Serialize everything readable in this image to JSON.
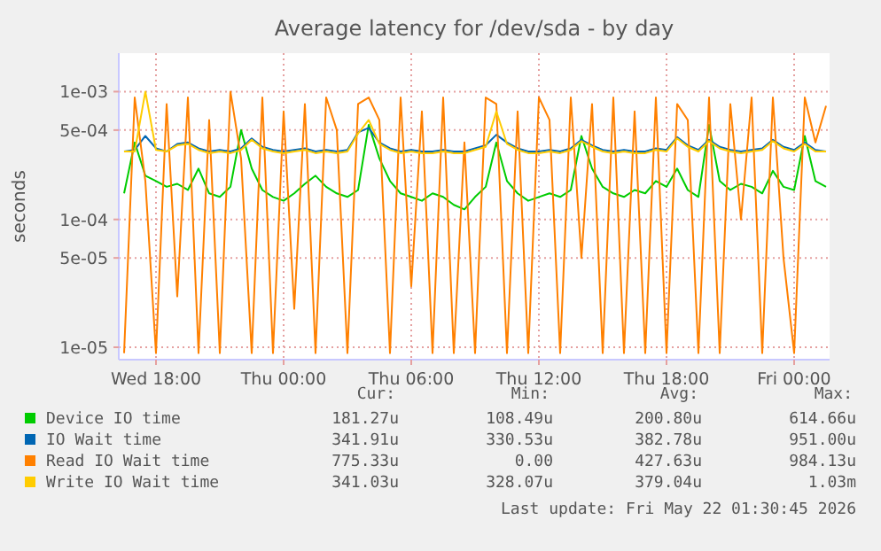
{
  "chart_data": {
    "type": "line",
    "title": "Average latency for /dev/sda - by day",
    "ylabel": "seconds",
    "log": "y",
    "grid": true,
    "legend": "bottom",
    "marker": "none",
    "line_style": "solid",
    "x": [
      "2026-05-20T16:30",
      "2026-05-20T17:00",
      "2026-05-20T17:30",
      "2026-05-20T18:00",
      "2026-05-20T18:30",
      "2026-05-20T19:00",
      "2026-05-20T19:30",
      "2026-05-20T20:00",
      "2026-05-20T20:30",
      "2026-05-20T21:00",
      "2026-05-20T21:30",
      "2026-05-20T22:00",
      "2026-05-20T22:30",
      "2026-05-20T23:00",
      "2026-05-20T23:30",
      "2026-05-21T00:00",
      "2026-05-21T00:30",
      "2026-05-21T01:00",
      "2026-05-21T01:30",
      "2026-05-21T02:00",
      "2026-05-21T02:30",
      "2026-05-21T03:00",
      "2026-05-21T03:30",
      "2026-05-21T04:00",
      "2026-05-21T04:30",
      "2026-05-21T05:00",
      "2026-05-21T05:30",
      "2026-05-21T06:00",
      "2026-05-21T06:30",
      "2026-05-21T07:00",
      "2026-05-21T07:30",
      "2026-05-21T08:00",
      "2026-05-21T08:30",
      "2026-05-21T09:00",
      "2026-05-21T09:30",
      "2026-05-21T10:00",
      "2026-05-21T10:30",
      "2026-05-21T11:00",
      "2026-05-21T11:30",
      "2026-05-21T12:00",
      "2026-05-21T12:30",
      "2026-05-21T13:00",
      "2026-05-21T13:30",
      "2026-05-21T14:00",
      "2026-05-21T14:30",
      "2026-05-21T15:00",
      "2026-05-21T15:30",
      "2026-05-21T16:00",
      "2026-05-21T16:30",
      "2026-05-21T17:00",
      "2026-05-21T17:30",
      "2026-05-21T18:00",
      "2026-05-21T18:30",
      "2026-05-21T19:00",
      "2026-05-21T19:30",
      "2026-05-21T20:00",
      "2026-05-21T20:30",
      "2026-05-21T21:00",
      "2026-05-21T21:30",
      "2026-05-21T22:00",
      "2026-05-21T22:30",
      "2026-05-21T23:00",
      "2026-05-21T23:30",
      "2026-05-22T00:00",
      "2026-05-22T00:30",
      "2026-05-22T01:00",
      "2026-05-22T01:30"
    ],
    "xlim": [
      "2026-05-20T16:15",
      "2026-05-22T01:40"
    ],
    "xticks": [
      {
        "value": "2026-05-20T18:00",
        "label": "Wed 18:00"
      },
      {
        "value": "2026-05-21T00:00",
        "label": "Thu 00:00"
      },
      {
        "value": "2026-05-21T06:00",
        "label": "Thu 06:00"
      },
      {
        "value": "2026-05-21T12:00",
        "label": "Thu 12:00"
      },
      {
        "value": "2026-05-21T18:00",
        "label": "Thu 18:00"
      },
      {
        "value": "2026-05-22T00:00",
        "label": "Fri 00:00"
      }
    ],
    "ylim": [
      8e-06,
      0.002
    ],
    "yticks": [
      {
        "value": 1e-05,
        "label": "1e-05"
      },
      {
        "value": 5e-05,
        "label": "5e-05"
      },
      {
        "value": 0.0001,
        "label": "1e-04"
      },
      {
        "value": 0.0005,
        "label": "5e-04"
      },
      {
        "value": 0.001,
        "label": "1e-03"
      }
    ],
    "series": [
      {
        "name": "Device IO time",
        "color": "#00cc00",
        "values": [
          0.00016,
          0.0004,
          0.00022,
          0.0002,
          0.00018,
          0.00019,
          0.00017,
          0.00025,
          0.00016,
          0.00015,
          0.00018,
          0.0005,
          0.00025,
          0.00017,
          0.00015,
          0.00014,
          0.00016,
          0.00019,
          0.00022,
          0.00018,
          0.00016,
          0.00015,
          0.00017,
          0.00055,
          0.0003,
          0.0002,
          0.00016,
          0.00015,
          0.00014,
          0.00016,
          0.00015,
          0.00013,
          0.00012,
          0.00015,
          0.00018,
          0.0004,
          0.0002,
          0.00016,
          0.00014,
          0.00015,
          0.00016,
          0.00015,
          0.00017,
          0.00045,
          0.00025,
          0.00018,
          0.00016,
          0.00015,
          0.00017,
          0.00016,
          0.0002,
          0.00018,
          0.00025,
          0.00017,
          0.00015,
          0.00055,
          0.0002,
          0.00017,
          0.00019,
          0.00018,
          0.00016,
          0.00024,
          0.00018,
          0.00017,
          0.00045,
          0.0002,
          0.00018
        ]
      },
      {
        "name": "IO Wait time",
        "color": "#0066b3",
        "values": [
          0.00034,
          0.00035,
          0.00045,
          0.00036,
          0.00034,
          0.00039,
          0.0004,
          0.00036,
          0.00034,
          0.00035,
          0.00034,
          0.00036,
          0.00043,
          0.00037,
          0.00035,
          0.00034,
          0.00035,
          0.00036,
          0.00034,
          0.00035,
          0.00034,
          0.00035,
          0.00048,
          0.00052,
          0.0004,
          0.00036,
          0.00034,
          0.00035,
          0.00034,
          0.00034,
          0.00035,
          0.00034,
          0.00034,
          0.00036,
          0.00038,
          0.00046,
          0.0004,
          0.00036,
          0.00034,
          0.00034,
          0.00035,
          0.00034,
          0.00036,
          0.00042,
          0.00038,
          0.00035,
          0.00034,
          0.00035,
          0.00034,
          0.00034,
          0.00036,
          0.00035,
          0.00044,
          0.00038,
          0.00035,
          0.00042,
          0.00037,
          0.00035,
          0.00034,
          0.00035,
          0.00036,
          0.00042,
          0.00037,
          0.00035,
          0.0004,
          0.00035,
          0.00034
        ]
      },
      {
        "name": "Read IO Wait time",
        "color": "#ff8000",
        "values": [
          9e-06,
          0.0009,
          0.0002,
          9e-06,
          0.0008,
          2.5e-05,
          0.0009,
          9e-06,
          0.0006,
          9e-06,
          0.001,
          0.0003,
          9e-06,
          0.0009,
          9e-06,
          0.0007,
          2e-05,
          0.0008,
          9e-06,
          0.0009,
          0.0005,
          9e-06,
          0.0008,
          0.0009,
          0.0006,
          9e-06,
          0.0009,
          3e-05,
          0.0007,
          9e-06,
          0.0009,
          9e-06,
          0.0004,
          9e-06,
          0.0009,
          0.0008,
          9e-06,
          0.0007,
          9e-06,
          0.0009,
          0.0006,
          9e-06,
          0.0009,
          5e-05,
          0.0008,
          9e-06,
          0.0009,
          9e-06,
          0.0007,
          9e-06,
          0.0009,
          9e-06,
          0.0008,
          0.0006,
          9e-06,
          0.0009,
          9e-06,
          0.0008,
          0.0001,
          0.0009,
          9e-06,
          0.0009,
          5e-05,
          9e-06,
          0.0009,
          0.0004,
          0.000775
        ]
      },
      {
        "name": "Write IO Wait time",
        "color": "#ffcc00",
        "values": [
          0.00034,
          0.00034,
          0.001,
          0.00035,
          0.00034,
          0.00038,
          0.00039,
          0.00035,
          0.00033,
          0.00034,
          0.00033,
          0.00035,
          0.00042,
          0.00036,
          0.00034,
          0.00033,
          0.00034,
          0.00035,
          0.00033,
          0.00034,
          0.00033,
          0.00034,
          0.00047,
          0.0006,
          0.00039,
          0.00035,
          0.00033,
          0.00034,
          0.00033,
          0.00033,
          0.00034,
          0.00033,
          0.00033,
          0.00035,
          0.00037,
          0.0007,
          0.00039,
          0.00035,
          0.00033,
          0.00033,
          0.00034,
          0.00033,
          0.00035,
          0.00041,
          0.00037,
          0.00034,
          0.00033,
          0.00034,
          0.00033,
          0.00033,
          0.00035,
          0.00034,
          0.00043,
          0.00037,
          0.00034,
          0.00041,
          0.00036,
          0.00034,
          0.00033,
          0.00034,
          0.00035,
          0.00041,
          0.00036,
          0.00034,
          0.00039,
          0.00034,
          0.00034
        ]
      }
    ],
    "annotations": [
      "Cur:",
      "Min:",
      "Avg:",
      "Max:",
      "181.27u",
      "108.49u",
      "200.80u",
      "614.66u",
      "341.91u",
      "330.53u",
      "382.78u",
      "951.00u",
      "775.33u",
      "0.00",
      "427.63u",
      "984.13u",
      "341.03u",
      "328.07u",
      "379.04u",
      "1.03m",
      "Last update: Fri May 22 01:30:45 2026"
    ]
  }
}
